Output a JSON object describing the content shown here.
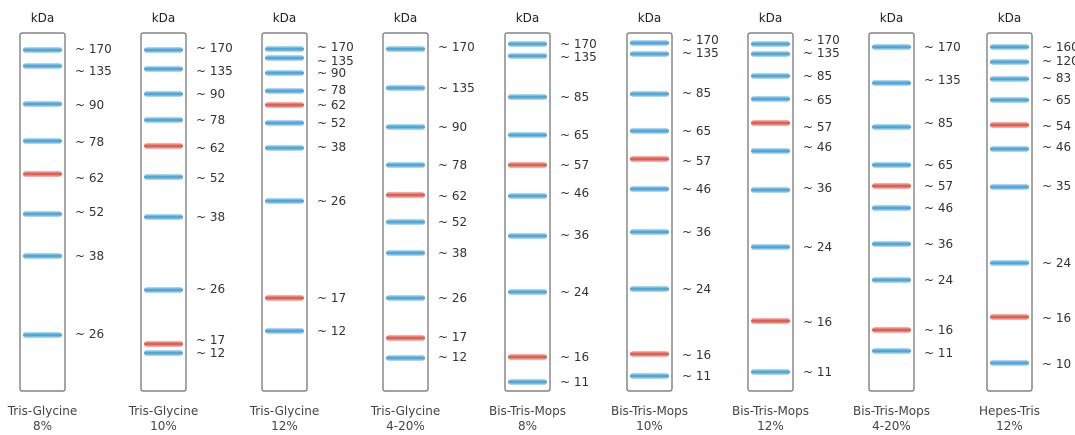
{
  "unit_label": "kDa",
  "colors": {
    "band_blue": "#3a9bd3",
    "band_red": "#e0493d",
    "lane_border": "#6b6b6b"
  },
  "ladders": [
    {
      "name": "Tris-Glycine",
      "percent": "8%",
      "bands": [
        {
          "label": "~ 170",
          "color": "blue"
        },
        {
          "label": "~ 135",
          "color": "blue"
        },
        {
          "label": "~ 90",
          "color": "blue"
        },
        {
          "label": "~ 78",
          "color": "blue"
        },
        {
          "label": "~ 62",
          "color": "red"
        },
        {
          "label": "~ 52",
          "color": "blue"
        },
        {
          "label": "~ 38",
          "color": "blue"
        },
        {
          "label": "~ 26",
          "color": "blue"
        }
      ]
    },
    {
      "name": "Tris-Glycine",
      "percent": "10%",
      "bands": [
        {
          "label": "~ 170",
          "color": "blue"
        },
        {
          "label": "~ 135",
          "color": "blue"
        },
        {
          "label": "~ 90",
          "color": "blue"
        },
        {
          "label": "~ 78",
          "color": "blue"
        },
        {
          "label": "~ 62",
          "color": "red"
        },
        {
          "label": "~ 52",
          "color": "blue"
        },
        {
          "label": "~ 38",
          "color": "blue"
        },
        {
          "label": "~ 26",
          "color": "blue"
        },
        {
          "label": "~ 17",
          "color": "red"
        },
        {
          "label": "~ 12",
          "color": "blue"
        }
      ]
    },
    {
      "name": "Tris-Glycine",
      "percent": "12%",
      "bands": [
        {
          "label": "~ 170",
          "color": "blue"
        },
        {
          "label": "~ 135",
          "color": "blue"
        },
        {
          "label": "~ 90",
          "color": "blue"
        },
        {
          "label": "~ 78",
          "color": "blue"
        },
        {
          "label": "~ 62",
          "color": "red"
        },
        {
          "label": "~ 52",
          "color": "blue"
        },
        {
          "label": "~ 38",
          "color": "blue"
        },
        {
          "label": "~ 26",
          "color": "blue"
        },
        {
          "label": "~ 17",
          "color": "red"
        },
        {
          "label": "~ 12",
          "color": "blue"
        }
      ]
    },
    {
      "name": "Tris-Glycine",
      "percent": "4-20%",
      "bands": [
        {
          "label": "~ 170",
          "color": "blue"
        },
        {
          "label": "~ 135",
          "color": "blue"
        },
        {
          "label": "~ 90",
          "color": "blue"
        },
        {
          "label": "~ 78",
          "color": "blue"
        },
        {
          "label": "~ 62",
          "color": "red"
        },
        {
          "label": "~ 52",
          "color": "blue"
        },
        {
          "label": "~ 38",
          "color": "blue"
        },
        {
          "label": "~ 26",
          "color": "blue"
        },
        {
          "label": "~ 17",
          "color": "red"
        },
        {
          "label": "~ 12",
          "color": "blue"
        }
      ]
    },
    {
      "name": "Bis-Tris-Mops",
      "percent": "8%",
      "bands": [
        {
          "label": "~ 170",
          "color": "blue"
        },
        {
          "label": "~ 135",
          "color": "blue"
        },
        {
          "label": "~ 85",
          "color": "blue"
        },
        {
          "label": "~ 65",
          "color": "blue"
        },
        {
          "label": "~ 57",
          "color": "red"
        },
        {
          "label": "~ 46",
          "color": "blue"
        },
        {
          "label": "~ 36",
          "color": "blue"
        },
        {
          "label": "~ 24",
          "color": "blue"
        },
        {
          "label": "~ 16",
          "color": "red"
        },
        {
          "label": "~ 11",
          "color": "blue"
        }
      ]
    },
    {
      "name": "Bis-Tris-Mops",
      "percent": "10%",
      "bands": [
        {
          "label": "~ 170",
          "color": "blue"
        },
        {
          "label": "~ 135",
          "color": "blue"
        },
        {
          "label": "~ 85",
          "color": "blue"
        },
        {
          "label": "~ 65",
          "color": "blue"
        },
        {
          "label": "~ 57",
          "color": "red"
        },
        {
          "label": "~ 46",
          "color": "blue"
        },
        {
          "label": "~ 36",
          "color": "blue"
        },
        {
          "label": "~ 24",
          "color": "blue"
        },
        {
          "label": "~ 16",
          "color": "red"
        },
        {
          "label": "~ 11",
          "color": "blue"
        }
      ]
    },
    {
      "name": "Bis-Tris-Mops",
      "percent": "12%",
      "bands": [
        {
          "label": "~ 170",
          "color": "blue"
        },
        {
          "label": "~ 135",
          "color": "blue"
        },
        {
          "label": "~ 85",
          "color": "blue"
        },
        {
          "label": "~ 65",
          "color": "blue"
        },
        {
          "label": "~ 57",
          "color": "red"
        },
        {
          "label": "~ 46",
          "color": "blue"
        },
        {
          "label": "~ 36",
          "color": "blue"
        },
        {
          "label": "~ 24",
          "color": "blue"
        },
        {
          "label": "~ 16",
          "color": "red"
        },
        {
          "label": "~ 11",
          "color": "blue"
        }
      ]
    },
    {
      "name": "Bis-Tris-Mops",
      "percent": "4-20%",
      "bands": [
        {
          "label": "~ 170",
          "color": "blue"
        },
        {
          "label": "~ 135",
          "color": "blue"
        },
        {
          "label": "~ 85",
          "color": "blue"
        },
        {
          "label": "~ 65",
          "color": "blue"
        },
        {
          "label": "~ 57",
          "color": "red"
        },
        {
          "label": "~ 46",
          "color": "blue"
        },
        {
          "label": "~ 36",
          "color": "blue"
        },
        {
          "label": "~ 24",
          "color": "blue"
        },
        {
          "label": "~ 16",
          "color": "red"
        },
        {
          "label": "~ 11",
          "color": "blue"
        }
      ]
    },
    {
      "name": "Hepes-Tris",
      "percent": "12%",
      "bands": [
        {
          "label": "~ 160",
          "color": "blue"
        },
        {
          "label": "~ 120",
          "color": "blue"
        },
        {
          "label": "~ 83",
          "color": "blue"
        },
        {
          "label": "~ 65",
          "color": "blue"
        },
        {
          "label": "~ 54",
          "color": "red"
        },
        {
          "label": "~ 46",
          "color": "blue"
        },
        {
          "label": "~ 35",
          "color": "blue"
        },
        {
          "label": "~ 24",
          "color": "blue"
        },
        {
          "label": "~ 16",
          "color": "red"
        },
        {
          "label": "~ 10",
          "color": "blue"
        }
      ]
    }
  ]
}
